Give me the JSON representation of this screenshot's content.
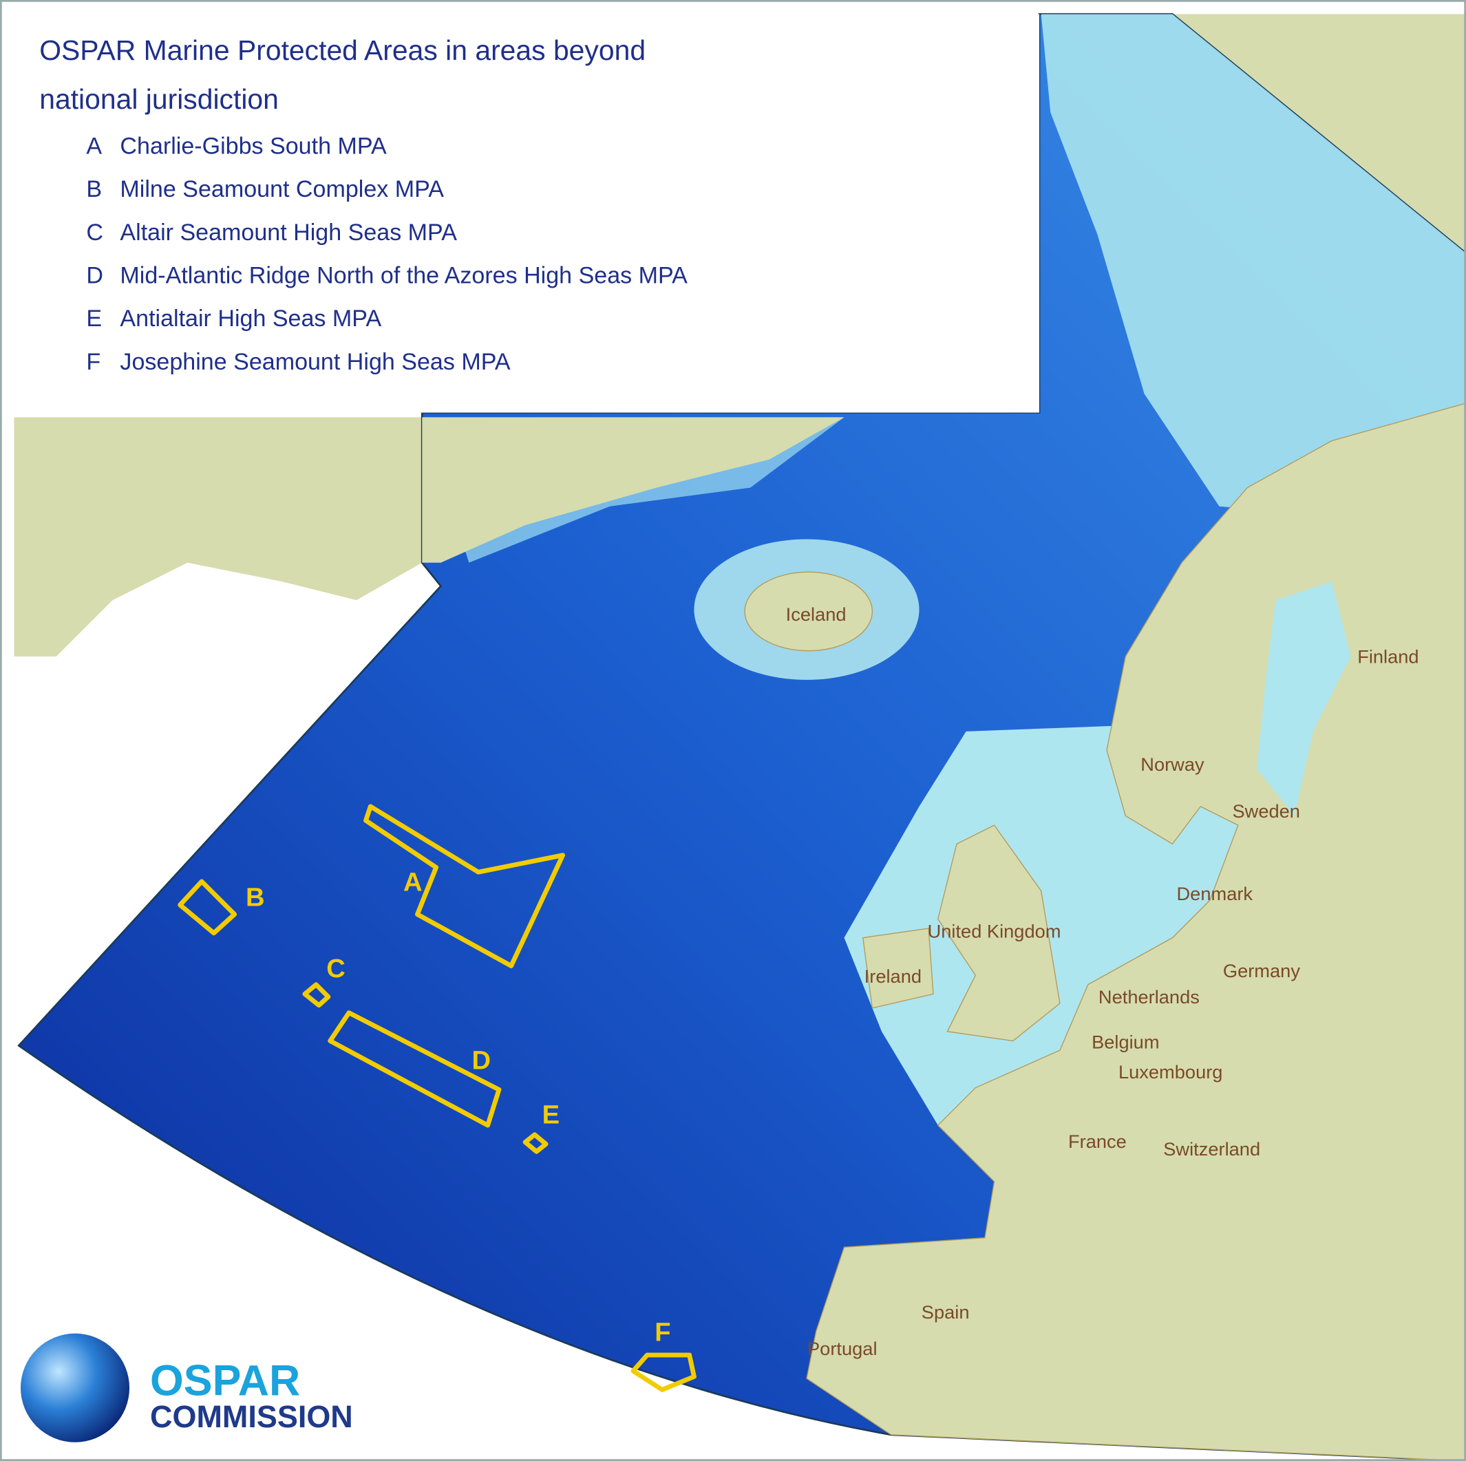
{
  "title": [
    "OSPAR Marine Protected Areas in areas beyond",
    "national jurisdiction"
  ],
  "legend": [
    {
      "letter": "A",
      "name": "Charlie-Gibbs South MPA"
    },
    {
      "letter": "B",
      "name": "Milne Seamount Complex MPA"
    },
    {
      "letter": "C",
      "name": "Altair Seamount High Seas MPA"
    },
    {
      "letter": "D",
      "name": "Mid-Atlantic Ridge North of the Azores High Seas MPA"
    },
    {
      "letter": "E",
      "name": "Antialtair High Seas MPA"
    },
    {
      "letter": "F",
      "name": "Josephine Seamount High Seas MPA"
    }
  ],
  "countries": [
    "Iceland",
    "Finland",
    "Norway",
    "Sweden",
    "Denmark",
    "United Kingdom",
    "Ireland",
    "Germany",
    "Netherlands",
    "Belgium",
    "Luxembourg",
    "France",
    "Switzerland",
    "Spain",
    "Portugal"
  ],
  "logo": {
    "line1": "OSPAR",
    "line2": "COMMISSION"
  }
}
